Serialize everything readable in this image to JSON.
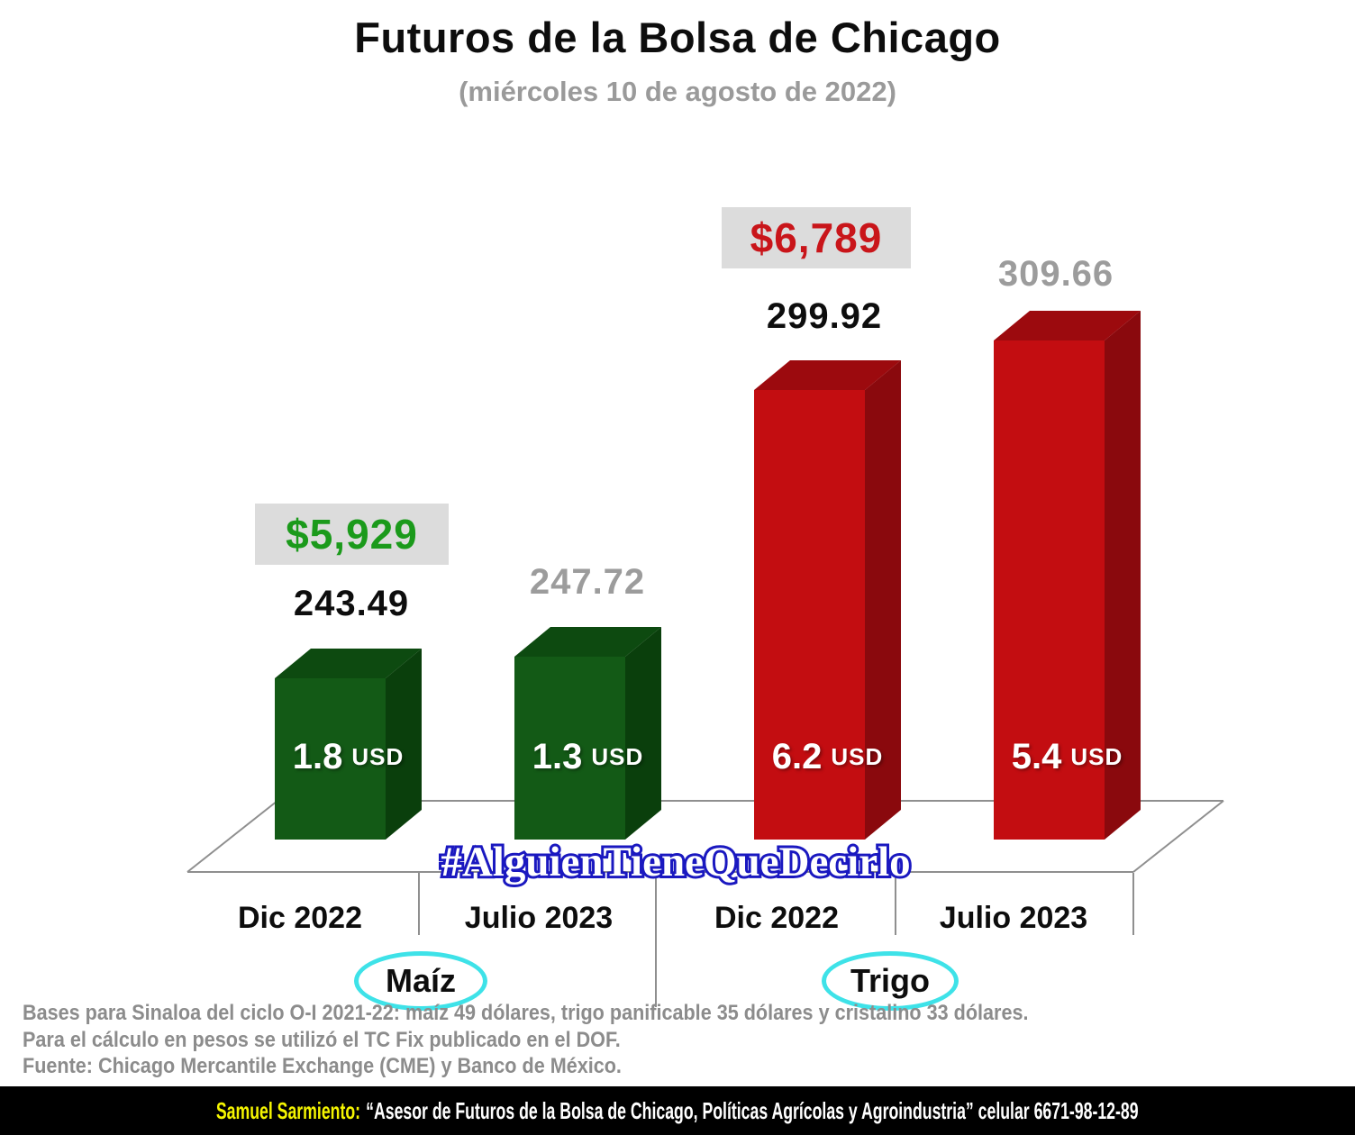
{
  "header": {
    "title": "Futuros de la Bolsa de Chicago",
    "subtitle": "(miércoles 10 de agosto de 2022)"
  },
  "chart_data": {
    "type": "bar",
    "title": "Futuros de la Bolsa de Chicago",
    "subtitle": "(miércoles 10 de agosto de 2022)",
    "categories": [
      "Dic 2022",
      "Julio 2023",
      "Dic 2022",
      "Julio 2023"
    ],
    "groups": [
      "Maíz",
      "Trigo"
    ],
    "bars": [
      {
        "group": "Maíz",
        "group_key": "maiz",
        "category": "Dic 2022",
        "value": 243.49,
        "value_label": "243.49",
        "basis_label": "1.8",
        "basis_unit": "USD",
        "price_tag": "$5,929"
      },
      {
        "group": "Maíz",
        "group_key": "maiz",
        "category": "Julio 2023",
        "value": 247.72,
        "value_label": "247.72",
        "basis_label": "1.3",
        "basis_unit": "USD"
      },
      {
        "group": "Trigo",
        "group_key": "trigo",
        "category": "Dic 2022",
        "value": 299.92,
        "value_label": "299.92",
        "basis_label": "6.2",
        "basis_unit": "USD",
        "price_tag": "$6,789"
      },
      {
        "group": "Trigo",
        "group_key": "trigo",
        "category": "Julio 2023",
        "value": 309.66,
        "value_label": "309.66",
        "basis_label": "5.4",
        "basis_unit": "USD"
      }
    ],
    "ylim": [
      212,
      320
    ],
    "grid": false,
    "legend_position": "none",
    "style": "3d-bars"
  },
  "watermark": {
    "text": "#AlguienTieneQueDecirlo"
  },
  "notes": {
    "line1": "Bases para Sinaloa del ciclo O-I 2021-22: maíz 49 dólares, trigo panificable 35 dólares y cristalino 33 dólares.",
    "line2": "Para el cálculo en pesos se utilizó el TC Fix publicado en el DOF.",
    "line3": "Fuente: Chicago Mercantile Exchange (CME) y Banco de México."
  },
  "footer": {
    "author": "Samuel Sarmiento:",
    "text": "“Asesor de Futuros de la Bolsa de Chicago, Políticas Agrícolas y Agroindustria” celular 6671-98-12-89"
  },
  "colors": {
    "maiz": {
      "front": "#135a16",
      "top": "#0d4a10",
      "side": "#0a3f0c"
    },
    "trigo": {
      "front": "#c30d11",
      "top": "#9c0a0e",
      "side": "#8a090d"
    },
    "axis_line": "#8f8f8f",
    "tag_bg": "#dcdcdc",
    "tag_green": "#1b9a1b",
    "tag_red": "#c9151a",
    "gray_value": "#9c9c9c",
    "black_value": "#0d0d0d",
    "cyan_ellipse": "#3ee2e8",
    "watermark_blue": "#1a18c0",
    "footer_yellow": "#f5f500"
  }
}
